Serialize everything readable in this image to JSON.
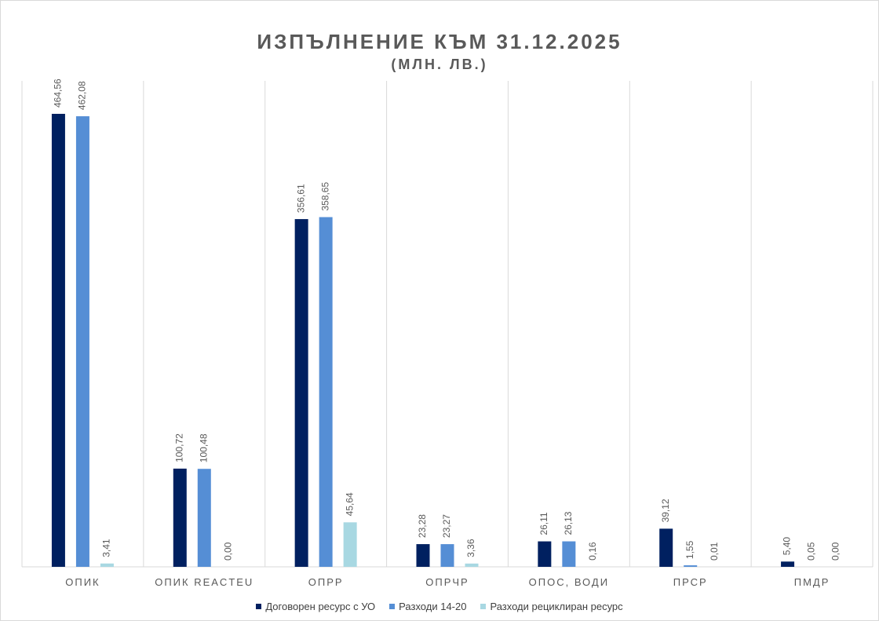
{
  "chart_data": {
    "type": "bar",
    "title": "ИЗПЪЛНЕНИЕ  КЪМ 31.12.2025",
    "subtitle": "(МЛН. ЛВ.)",
    "categories": [
      "ОПИК",
      "ОПИК REACTEU",
      "ОПРР",
      "ОПРЧР",
      "ОПОС, ВОДИ",
      "ПРСР",
      "ПМДР"
    ],
    "series": [
      {
        "name": "Договорен ресурс с УО",
        "color": "#002060",
        "values": [
          464.56,
          100.72,
          356.61,
          23.28,
          26.11,
          39.12,
          5.4
        ],
        "labels": [
          "464,56",
          "100,72",
          "356,61",
          "23,28",
          "26,11",
          "39,12",
          "5,40"
        ]
      },
      {
        "name": "Разходи 14-20",
        "color": "#558ED5",
        "values": [
          462.08,
          100.48,
          358.65,
          23.27,
          26.13,
          1.55,
          0.05
        ],
        "labels": [
          "462,08",
          "100,48",
          "358,65",
          "23,27",
          "26,13",
          "1,55",
          "0,05"
        ]
      },
      {
        "name": "Разходи рециклиран ресурс",
        "color": "#A8D8E2",
        "values": [
          3.41,
          0.0,
          45.64,
          3.36,
          0.16,
          0.01,
          0.0
        ],
        "labels": [
          "3,41",
          "0,00",
          "45,64",
          "3,36",
          "0,16",
          "0,01",
          "0,00"
        ]
      }
    ],
    "ylim": [
      0,
      500
    ],
    "grid": "vertical category separators",
    "legend_position": "bottom"
  }
}
